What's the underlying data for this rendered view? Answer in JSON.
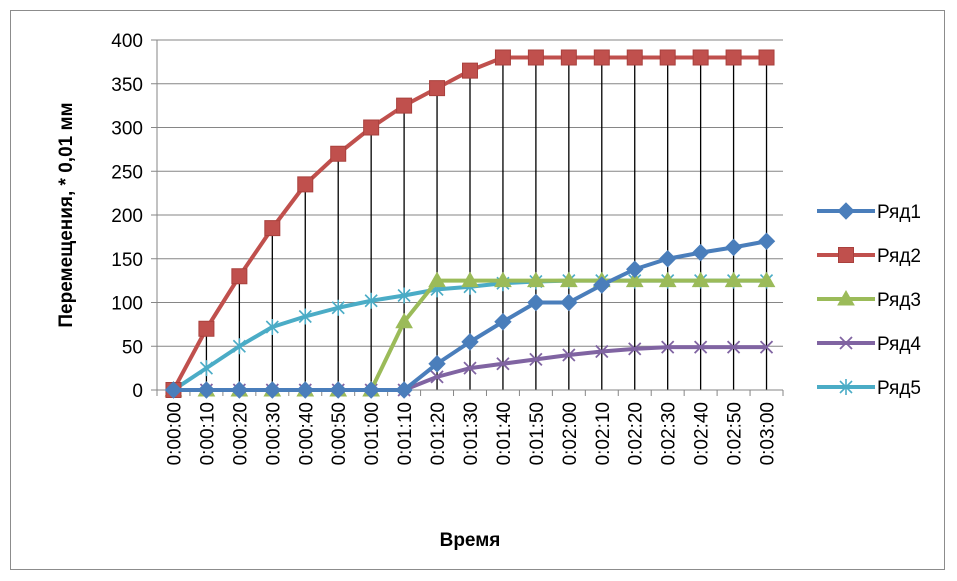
{
  "chart_data": {
    "type": "line",
    "xlabel": "Время",
    "ylabel": "Перемещения, * 0,01 мм",
    "ylim": [
      0,
      400
    ],
    "yticks": [
      0,
      50,
      100,
      150,
      200,
      250,
      300,
      350,
      400
    ],
    "categories": [
      "0:00:00",
      "0:00:10",
      "0:00:20",
      "0:00:30",
      "0:00:40",
      "0:00:50",
      "0:01:00",
      "0:01:10",
      "0:01:20",
      "0:01:30",
      "0:01:40",
      "0:01:50",
      "0:02:00",
      "0:02:10",
      "0:02:20",
      "0:02:30",
      "0:02:40",
      "0:02:50",
      "0:03:00"
    ],
    "grid": "horizontal gridlines plus vertical drop lines",
    "legend_position": "right",
    "series": [
      {
        "name": "Ряд1",
        "color": "#4a7ebb",
        "marker": "diamond",
        "values": [
          0,
          0,
          0,
          0,
          0,
          0,
          0,
          0,
          30,
          55,
          78,
          100,
          100,
          120,
          138,
          150,
          157,
          163,
          170
        ]
      },
      {
        "name": "Ряд2",
        "color": "#c0504d",
        "marker": "square",
        "values": [
          0,
          70,
          130,
          185,
          235,
          270,
          300,
          325,
          345,
          365,
          380,
          380,
          380,
          380,
          380,
          380,
          380,
          380,
          380
        ]
      },
      {
        "name": "Ряд3",
        "color": "#9bbb59",
        "marker": "triangle",
        "values": [
          0,
          0,
          0,
          0,
          0,
          0,
          0,
          78,
          125,
          125,
          125,
          125,
          125,
          125,
          125,
          125,
          125,
          125,
          125
        ]
      },
      {
        "name": "Ряд4",
        "color": "#8064a2",
        "marker": "x",
        "values": [
          0,
          0,
          0,
          0,
          0,
          0,
          0,
          0,
          15,
          25,
          30,
          35,
          40,
          44,
          47,
          49,
          49,
          49,
          49
        ]
      },
      {
        "name": "Ряд5",
        "color": "#4bacc6",
        "marker": "star",
        "values": [
          0,
          25,
          50,
          72,
          84,
          94,
          102,
          108,
          115,
          118,
          122,
          124,
          125,
          125,
          125,
          125,
          125,
          125,
          125
        ]
      }
    ]
  }
}
